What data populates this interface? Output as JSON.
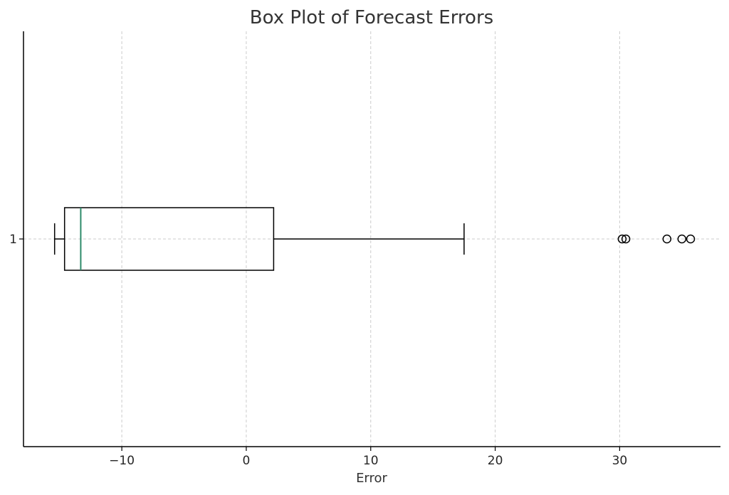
{
  "chart_data": {
    "type": "boxplot",
    "orientation": "horizontal",
    "title": "Box Plot of Forecast Errors",
    "xlabel": "Error",
    "ylabel": "",
    "xlim": [
      -17.9,
      38.1
    ],
    "grid": true,
    "x_ticks": [
      {
        "value": -10,
        "label": "−10"
      },
      {
        "value": 0,
        "label": "0"
      },
      {
        "value": 10,
        "label": "10"
      },
      {
        "value": 20,
        "label": "20"
      },
      {
        "value": 30,
        "label": "30"
      }
    ],
    "categories": [
      "1"
    ],
    "boxes": [
      {
        "category": "1",
        "whisker_low": -15.4,
        "q1": -14.6,
        "median": -13.3,
        "q3": 2.2,
        "whisker_high": 17.5,
        "outliers": [
          30.2,
          30.5,
          33.8,
          35.0,
          35.7
        ]
      }
    ],
    "colors": {
      "box": "#000000",
      "median": "#2e8b6a",
      "grid": "#cccccc",
      "axis": "#000000"
    }
  }
}
